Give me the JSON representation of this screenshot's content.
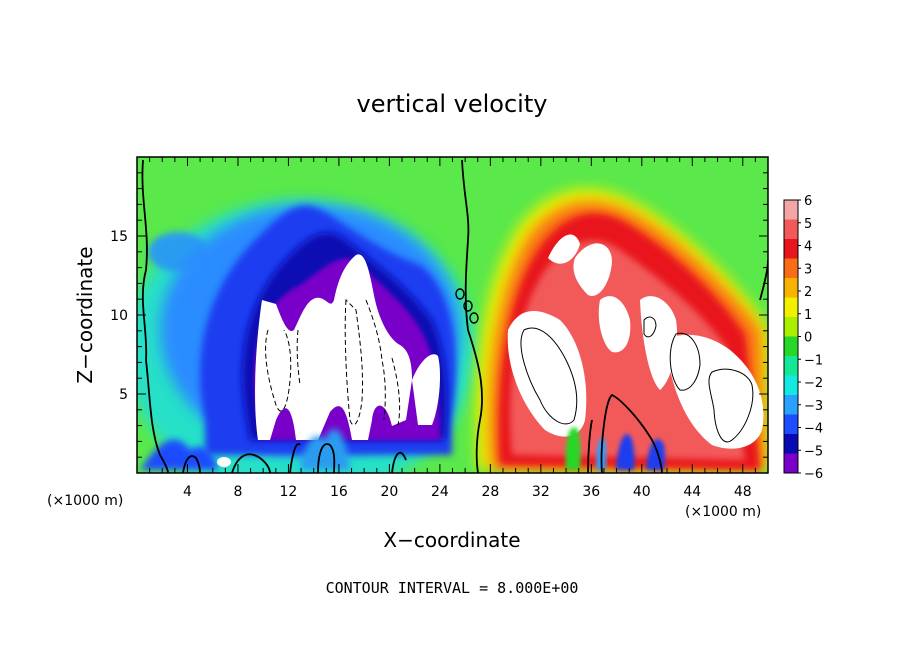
{
  "chart_data": {
    "type": "heatmap",
    "title": "vertical velocity",
    "xlabel": "X−coordinate",
    "ylabel": "Z−coordinate",
    "x_unit": "(×1000 m)",
    "y_unit": "(×1000 m)",
    "footnote": "CONTOUR INTERVAL = 8.000E+00",
    "xlim": [
      0,
      50
    ],
    "ylim": [
      0,
      20
    ],
    "x_ticks": [
      4,
      8,
      12,
      16,
      20,
      24,
      28,
      32,
      36,
      40,
      44,
      48
    ],
    "y_ticks": [
      5,
      10,
      15
    ],
    "contour_interval": 8,
    "colorbar": {
      "range": [
        -6,
        6
      ],
      "labels": [
        "6",
        "5",
        "4",
        "3",
        "2",
        "1",
        "0",
        "−1",
        "−2",
        "−3",
        "−4",
        "−5",
        "−6"
      ],
      "colors": [
        "#f4a6a6",
        "#f25a5a",
        "#e8141e",
        "#fa6c16",
        "#f6b400",
        "#f0f000",
        "#a8f000",
        "#28d828",
        "#14e896",
        "#14e8e0",
        "#2aa0ff",
        "#1e4cff",
        "#0a0ab4",
        "#7800c8"
      ]
    },
    "features": [
      {
        "kind": "downdraft",
        "cx": 17,
        "cz": 9,
        "w_min": "< -6"
      },
      {
        "kind": "updraft",
        "cx": 36,
        "cz": 10,
        "w_max": "> 6"
      }
    ]
  }
}
